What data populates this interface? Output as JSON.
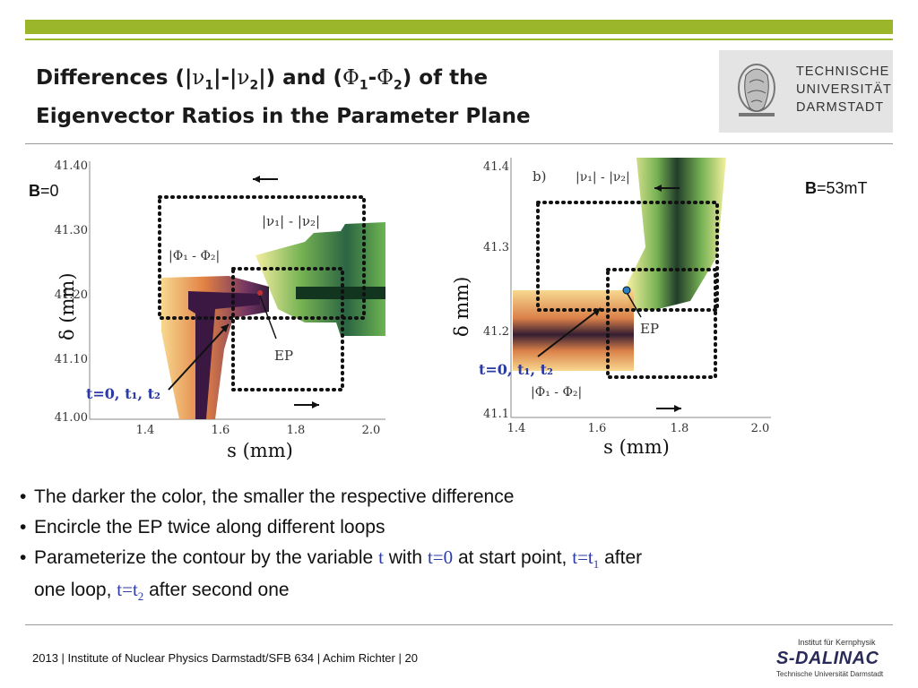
{
  "header": {
    "title_line1_a": "Differences (|",
    "nu": "ν",
    "sub1": "1",
    "title_line1_b": "|-|",
    "sub2": "2",
    "title_line1_c": "|) and (",
    "phi": "Φ",
    "dash": "-",
    "title_line1_d": ") of the",
    "title_line2": "Eigenvector Ratios in the Parameter Plane"
  },
  "logo": {
    "line1": "TECHNISCHE",
    "line2": "UNIVERSITÄT",
    "line3": "DARMSTADT"
  },
  "left_plot": {
    "field_bold": "B",
    "field_rest": "=0",
    "yticks": [
      "41.40",
      "41.30",
      "41.20",
      "41.10",
      "41.00"
    ],
    "xticks": [
      "1.4",
      "1.6",
      "1.8",
      "2.0"
    ],
    "ylabel": "δ (mm)",
    "xlabel": "s (mm)",
    "label_nu": "|ν₁| - |ν₂|",
    "label_phi": "|Φ₁ - Φ₂|",
    "ep": "EP",
    "t_label": "t=0, t₁, t₂"
  },
  "right_plot": {
    "field_bold": "B",
    "field_rest": "=53mT",
    "panel": "b)",
    "yticks": [
      "41.4",
      "41.3",
      "41.2",
      "41.1"
    ],
    "xticks": [
      "1.4",
      "1.6",
      "1.8",
      "2.0"
    ],
    "ylabel": "δ mm)",
    "xlabel": "s (mm)",
    "label_nu": "|ν₁| - |ν₂|",
    "label_phi": "|Φ₁ - Φ₂|",
    "ep": "EP",
    "t_label": "t=0, t₁, t₂"
  },
  "bullets": {
    "b1": "The darker the color, the smaller the respective difference",
    "b2": "Encircle the EP twice along different loops",
    "b3_a": "Parameterize the contour by the variable",
    "b3_t": "t",
    "b3_b": "with",
    "b3_t0": "t=0",
    "b3_c": "at start point,",
    "b3_t1": "t=t",
    "b3_sub1": "1",
    "b3_d": "after",
    "b3_e": "one loop,",
    "b3_t2": "t=t",
    "b3_sub2": "2",
    "b3_f": "after second one"
  },
  "footer": {
    "text": "2013  |  Institute of Nuclear Physics Darmstadt/SFB 634 |  Achim Richter  |  20"
  },
  "sdalinac": {
    "inst": "Institut für Kernphysik",
    "name": "S-DALINAC",
    "uni": "Technische Universität Darmstadt"
  },
  "colors": {
    "brand_green": "#9bb62b",
    "arrow_label_blue": "#2b3aa5"
  }
}
